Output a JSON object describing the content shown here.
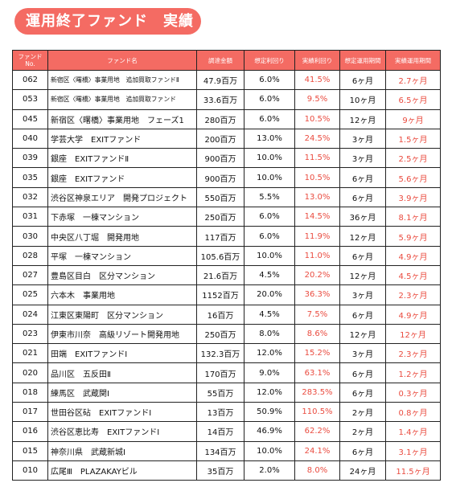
{
  "page_title": "運用終了ファンド　実績",
  "columns": {
    "no_line1": "ファンド",
    "no_line2": "No.",
    "name": "ファンド名",
    "amount": "調達金額",
    "planned_rate": "想定利回り",
    "actual_rate": "実績利回り",
    "planned_period": "想定運用期間",
    "actual_period": "実績運用期間"
  },
  "rows": [
    {
      "no": "062",
      "name": "新宿区〈曙橋〉事業用地　追加買取ファンドⅡ",
      "amount": "47.9百万",
      "planned": "6.0%",
      "actual": "41.5%",
      "pperiod": "6ヶ月",
      "aperiod": "2.7ヶ月",
      "small": true
    },
    {
      "no": "053",
      "name": "新宿区〈曙橋〉事業用地　追加買取ファンド",
      "amount": "33.6百万",
      "planned": "6.0%",
      "actual": "9.5%",
      "pperiod": "10ヶ月",
      "aperiod": "6.5ヶ月",
      "small": true
    },
    {
      "no": "045",
      "name": "新宿区〈曙橋〉事業用地　フェーズ1",
      "amount": "280百万",
      "planned": "6.0%",
      "actual": "10.5%",
      "pperiod": "12ヶ月",
      "aperiod": "9ヶ月"
    },
    {
      "no": "040",
      "name": "学芸大学　EXITファンド",
      "amount": "200百万",
      "planned": "13.0%",
      "actual": "24.5%",
      "pperiod": "3ヶ月",
      "aperiod": "1.5ヶ月"
    },
    {
      "no": "039",
      "name": "銀座　EXITファンドⅡ",
      "amount": "900百万",
      "planned": "10.0%",
      "actual": "11.5%",
      "pperiod": "3ヶ月",
      "aperiod": "2.5ヶ月"
    },
    {
      "no": "035",
      "name": "銀座　EXITファンド",
      "amount": "900百万",
      "planned": "10.0%",
      "actual": "10.5%",
      "pperiod": "6ヶ月",
      "aperiod": "5.6ヶ月"
    },
    {
      "no": "032",
      "name": "渋谷区神泉エリア　開発プロジェクト",
      "amount": "550百万",
      "planned": "5.5%",
      "actual": "13.0%",
      "pperiod": "6ヶ月",
      "aperiod": "3.9ヶ月"
    },
    {
      "no": "031",
      "name": "下赤塚　一棟マンション",
      "amount": "250百万",
      "planned": "6.0%",
      "actual": "14.5%",
      "pperiod": "36ヶ月",
      "aperiod": "8.1ヶ月"
    },
    {
      "no": "030",
      "name": "中央区八丁堀　開発用地",
      "amount": "117百万",
      "planned": "6.0%",
      "actual": "11.9%",
      "pperiod": "12ヶ月",
      "aperiod": "5.9ヶ月"
    },
    {
      "no": "028",
      "name": "平塚　一棟マンション",
      "amount": "105.6百万",
      "planned": "10.0%",
      "actual": "11.0%",
      "pperiod": "6ヶ月",
      "aperiod": "4.9ヶ月"
    },
    {
      "no": "027",
      "name": "豊島区目白　区分マンション",
      "amount": "21.6百万",
      "planned": "4.5%",
      "actual": "20.2%",
      "pperiod": "12ヶ月",
      "aperiod": "4.5ヶ月"
    },
    {
      "no": "025",
      "name": "六本木　事業用地",
      "amount": "1152百万",
      "planned": "20.0%",
      "actual": "36.3%",
      "pperiod": "3ヶ月",
      "aperiod": "2.3ヶ月"
    },
    {
      "no": "024",
      "name": "江東区東陽町　区分マンション",
      "amount": "16百万",
      "planned": "4.5%",
      "actual": "7.5%",
      "pperiod": "6ヶ月",
      "aperiod": "4.9ヶ月"
    },
    {
      "no": "023",
      "name": "伊東市川奈　高級リゾート開発用地",
      "amount": "250百万",
      "planned": "8.0%",
      "actual": "8.6%",
      "pperiod": "12ヶ月",
      "aperiod": "12ヶ月"
    },
    {
      "no": "021",
      "name": "田端　EXITファンドⅠ",
      "amount": "132.3百万",
      "planned": "12.0%",
      "actual": "15.2%",
      "pperiod": "3ヶ月",
      "aperiod": "2.3ヶ月"
    },
    {
      "no": "020",
      "name": "品川区　五反田Ⅱ",
      "amount": "170百万",
      "planned": "9.0%",
      "actual": "63.1%",
      "pperiod": "6ヶ月",
      "aperiod": "1.2ヶ月"
    },
    {
      "no": "018",
      "name": "練馬区　武蔵関Ⅰ",
      "amount": "55百万",
      "planned": "12.0%",
      "actual": "283.5%",
      "pperiod": "6ヶ月",
      "aperiod": "0.3ヶ月"
    },
    {
      "no": "017",
      "name": "世田谷区砧　EXITファンドⅠ",
      "amount": "13百万",
      "planned": "50.9%",
      "actual": "110.5%",
      "pperiod": "2ヶ月",
      "aperiod": "0.8ヶ月"
    },
    {
      "no": "016",
      "name": "渋谷区恵比寿　EXITファンドⅠ",
      "amount": "14百万",
      "planned": "46.9%",
      "actual": "62.2%",
      "pperiod": "2ヶ月",
      "aperiod": "1.4ヶ月"
    },
    {
      "no": "015",
      "name": "神奈川県　武蔵新城Ⅰ",
      "amount": "134百万",
      "planned": "10.0%",
      "actual": "24.1%",
      "pperiod": "6ヶ月",
      "aperiod": "3.1ヶ月"
    },
    {
      "no": "010",
      "name": "広尾Ⅲ　PLAZAKAYビル",
      "amount": "35百万",
      "planned": "2.0%",
      "actual": "8.0%",
      "pperiod": "24ヶ月",
      "aperiod": "11.5ヶ月"
    }
  ]
}
